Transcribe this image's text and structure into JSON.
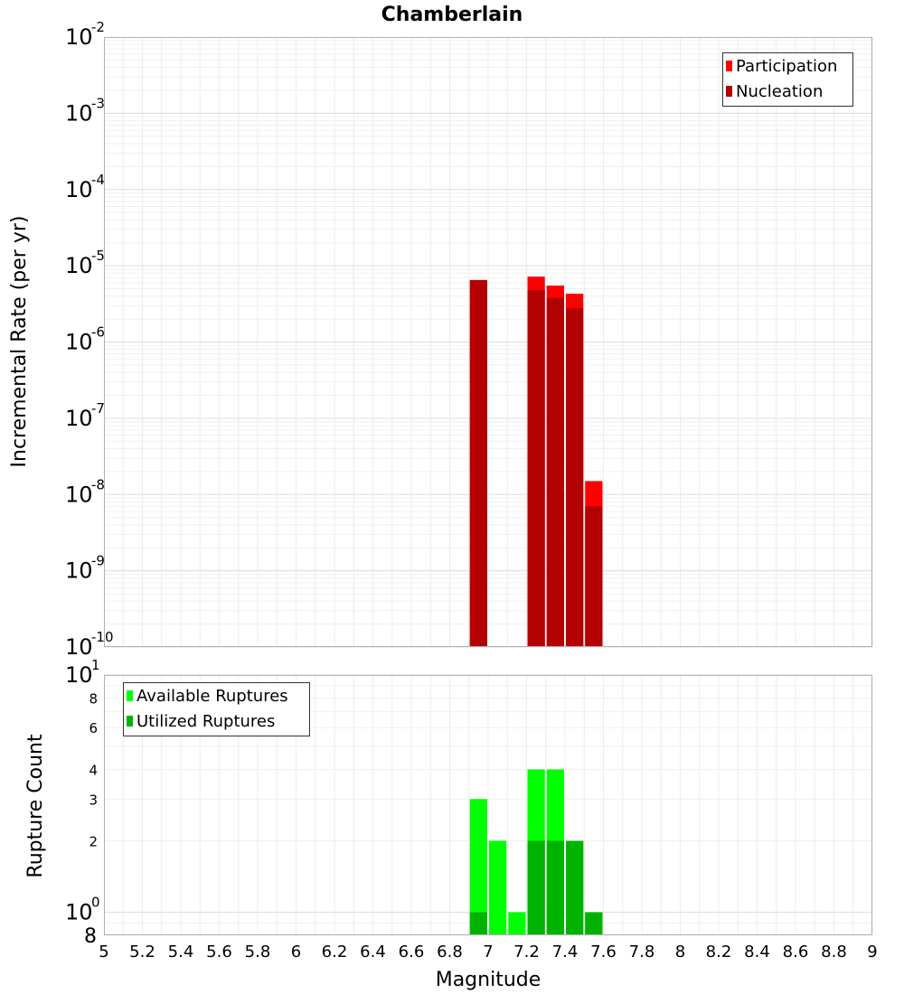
{
  "chart_data": [
    {
      "type": "bar",
      "title": "Chamberlain",
      "ylabel": "Incremental Rate (per yr)",
      "xlabel": "",
      "xlim": [
        5,
        9
      ],
      "ylim": [
        1e-10,
        0.01
      ],
      "yscale": "log",
      "grid": true,
      "legend_position": "top-right",
      "bin_width": 0.1,
      "y_tick_labels": [
        {
          "base": "10",
          "exp": "-2"
        },
        {
          "base": "10",
          "exp": "-3"
        },
        {
          "base": "10",
          "exp": "-4"
        },
        {
          "base": "10",
          "exp": "-5"
        },
        {
          "base": "10",
          "exp": "-6"
        },
        {
          "base": "10",
          "exp": "-7"
        },
        {
          "base": "10",
          "exp": "-8"
        },
        {
          "base": "10",
          "exp": "-9"
        },
        {
          "base": "10",
          "exp": "-10"
        }
      ],
      "series": [
        {
          "name": "Participation",
          "color": "#ff0000",
          "points": [
            {
              "x": 6.95,
              "y": 6.5e-06
            },
            {
              "x": 7.25,
              "y": 7.2e-06
            },
            {
              "x": 7.35,
              "y": 5.5e-06
            },
            {
              "x": 7.45,
              "y": 4.3e-06
            },
            {
              "x": 7.55,
              "y": 1.5e-08
            }
          ]
        },
        {
          "name": "Nucleation",
          "color": "#b30000",
          "points": [
            {
              "x": 6.95,
              "y": 6.5e-06
            },
            {
              "x": 7.25,
              "y": 4.8e-06
            },
            {
              "x": 7.35,
              "y": 3.8e-06
            },
            {
              "x": 7.45,
              "y": 2.8e-06
            },
            {
              "x": 7.55,
              "y": 7e-09
            }
          ]
        }
      ]
    },
    {
      "type": "bar",
      "title": "",
      "ylabel": "Rupture Count",
      "xlabel": "Magnitude",
      "xlim": [
        5,
        9
      ],
      "ylim": [
        0.8,
        10
      ],
      "yscale": "log",
      "grid": true,
      "legend_position": "top-left",
      "bin_width": 0.1,
      "x_ticks": [
        "5",
        "5.2",
        "5.4",
        "5.6",
        "5.8",
        "6",
        "6.2",
        "6.4",
        "6.6",
        "6.8",
        "7",
        "7.2",
        "7.4",
        "7.6",
        "7.8",
        "8",
        "8.2",
        "8.4",
        "8.6",
        "8.8",
        "9"
      ],
      "y_major_labels": [
        {
          "base": "10",
          "exp": "1"
        },
        {
          "base": "10",
          "exp": "0"
        }
      ],
      "y_minor_labels": [
        "8",
        "6",
        "4",
        "3",
        "2",
        "8"
      ],
      "series": [
        {
          "name": "Available Ruptures",
          "color": "#00ff00",
          "points": [
            {
              "x": 6.95,
              "y": 3
            },
            {
              "x": 7.05,
              "y": 2
            },
            {
              "x": 7.15,
              "y": 1
            },
            {
              "x": 7.25,
              "y": 4
            },
            {
              "x": 7.35,
              "y": 4
            },
            {
              "x": 7.45,
              "y": 2
            },
            {
              "x": 7.55,
              "y": 1
            }
          ]
        },
        {
          "name": "Utilized Ruptures",
          "color": "#00b300",
          "points": [
            {
              "x": 6.95,
              "y": 1
            },
            {
              "x": 7.25,
              "y": 2
            },
            {
              "x": 7.35,
              "y": 2
            },
            {
              "x": 7.45,
              "y": 2
            },
            {
              "x": 7.55,
              "y": 1
            }
          ]
        }
      ]
    }
  ]
}
